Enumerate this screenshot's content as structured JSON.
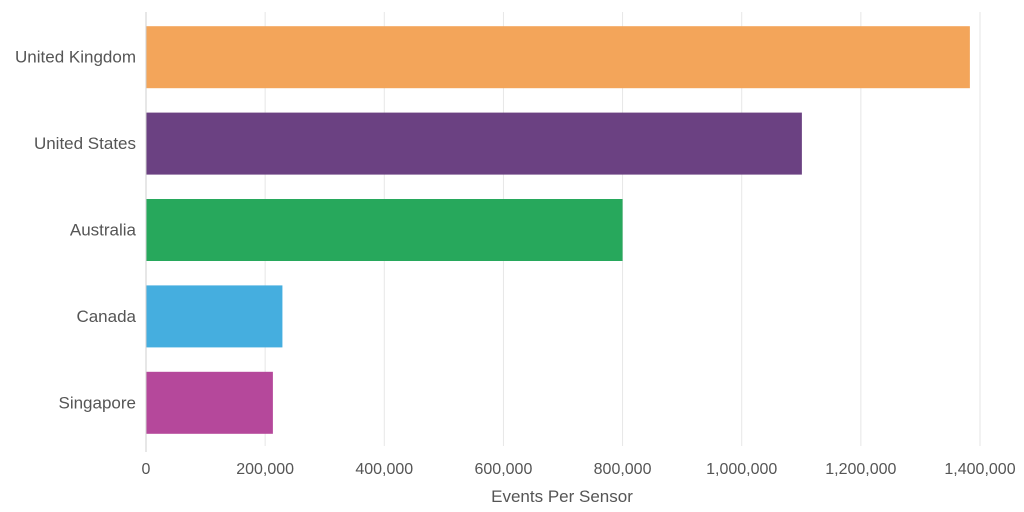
{
  "chart_data": {
    "type": "bar",
    "orientation": "horizontal",
    "categories": [
      "United Kingdom",
      "United States",
      "Australia",
      "Canada",
      "Singapore"
    ],
    "values": [
      1383000,
      1101000,
      800000,
      229000,
      213000
    ],
    "colors": [
      "#f3a55a",
      "#6b4182",
      "#27a85c",
      "#45aedf",
      "#b5489b"
    ],
    "xlabel": "Events Per Sensor",
    "ylabel": "",
    "title": "",
    "xlim": [
      0,
      1400000
    ],
    "xticks": [
      0,
      200000,
      400000,
      600000,
      800000,
      1000000,
      1200000,
      1400000
    ],
    "xtick_labels": [
      "0",
      "200,000",
      "400,000",
      "600,000",
      "800,000",
      "1,000,000",
      "1,200,000",
      "1,400,000"
    ],
    "grid": "vertical"
  }
}
